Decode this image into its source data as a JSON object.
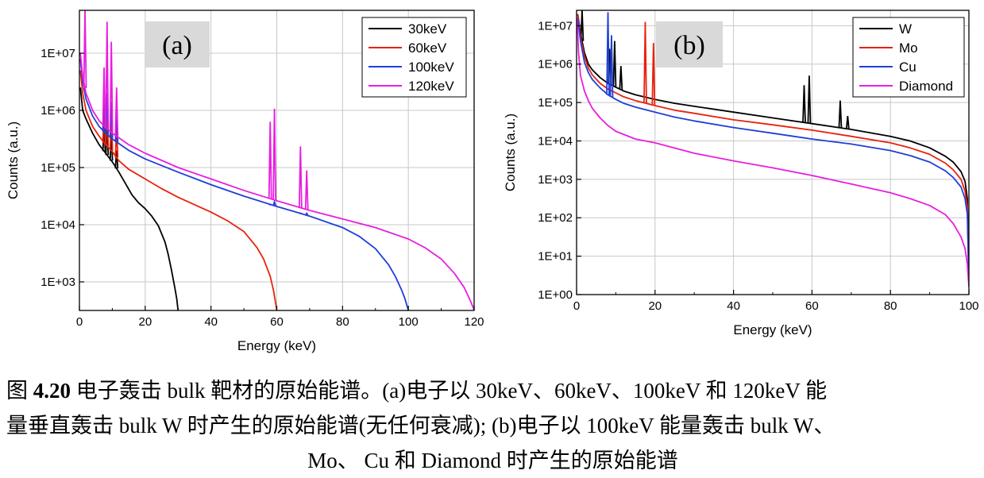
{
  "chart_data": [
    {
      "type": "line",
      "panel_label": "(a)",
      "xlabel": "Energy (keV)",
      "ylabel": "Counts (a.u.)",
      "yscale": "log",
      "xlim": [
        0,
        120
      ],
      "ylim_log10": [
        2.5,
        7.75
      ],
      "xticks": [
        0,
        20,
        40,
        60,
        80,
        100,
        120
      ],
      "xtick_labels": [
        "0",
        "20",
        "40",
        "60",
        "80",
        "100",
        "120"
      ],
      "yticks_log10": [
        3,
        4,
        5,
        6,
        7
      ],
      "ytick_labels": [
        "1E+03",
        "1E+04",
        "1E+05",
        "1E+06",
        "1E+07"
      ],
      "grid": true,
      "legend_position": "top-right",
      "series": [
        {
          "name": "30keV",
          "color": "#000000",
          "x": [
            0.3,
            1,
            2,
            4,
            6,
            8,
            10,
            12,
            14,
            16,
            18,
            20,
            22,
            24,
            26,
            27,
            28,
            29,
            29.6,
            29.9,
            30
          ],
          "log10y": [
            6.4,
            6.0,
            5.85,
            5.6,
            5.4,
            5.25,
            5.1,
            4.92,
            4.72,
            4.52,
            4.38,
            4.28,
            4.15,
            3.98,
            3.7,
            3.48,
            3.2,
            2.9,
            2.7,
            2.55,
            2.5
          ],
          "peaks": [
            {
              "x": 7.5,
              "log10y": 5.7
            },
            {
              "x": 8.4,
              "log10y": 5.75
            },
            {
              "x": 9.7,
              "log10y": 5.55
            },
            {
              "x": 11.3,
              "log10y": 5.3
            }
          ]
        },
        {
          "name": "60keV",
          "color": "#e8220c",
          "x": [
            0.3,
            1,
            2,
            4,
            6,
            8,
            10,
            12,
            15,
            20,
            25,
            30,
            35,
            40,
            45,
            50,
            54,
            56,
            58,
            59,
            59.6,
            60
          ],
          "log10y": [
            6.7,
            6.3,
            6.0,
            5.72,
            5.55,
            5.4,
            5.28,
            5.12,
            4.97,
            4.8,
            4.63,
            4.48,
            4.35,
            4.22,
            4.07,
            3.88,
            3.6,
            3.4,
            3.1,
            2.85,
            2.65,
            2.5
          ],
          "peaks": [
            {
              "x": 7.5,
              "log10y": 6.05
            },
            {
              "x": 8.4,
              "log10y": 6.1
            },
            {
              "x": 9.7,
              "log10y": 5.95
            },
            {
              "x": 11.3,
              "log10y": 5.7
            }
          ]
        },
        {
          "name": "100keV",
          "color": "#1f3fd8",
          "x": [
            0.3,
            1,
            2,
            4,
            6,
            8,
            10,
            15,
            20,
            30,
            40,
            50,
            60,
            70,
            80,
            85,
            90,
            94,
            96,
            98,
            99,
            99.6,
            100
          ],
          "log10y": [
            6.9,
            6.5,
            6.2,
            5.9,
            5.72,
            5.6,
            5.5,
            5.3,
            5.15,
            4.92,
            4.7,
            4.5,
            4.32,
            4.15,
            3.95,
            3.8,
            3.58,
            3.3,
            3.1,
            2.85,
            2.7,
            2.58,
            2.5
          ],
          "peaks": [
            {
              "x": 7.5,
              "log10y": 6.25
            },
            {
              "x": 8.4,
              "log10y": 6.3
            },
            {
              "x": 9.7,
              "log10y": 6.15
            },
            {
              "x": 11.3,
              "log10y": 5.95
            },
            {
              "x": 58.0,
              "log10y": 4.35
            },
            {
              "x": 59.3,
              "log10y": 4.4
            },
            {
              "x": 67.2,
              "log10y": 4.2
            },
            {
              "x": 69.1,
              "log10y": 4.2
            }
          ]
        },
        {
          "name": "120keV",
          "color": "#e81ee0",
          "x": [
            0.3,
            1,
            2,
            4,
            6,
            8,
            10,
            15,
            20,
            30,
            40,
            50,
            60,
            70,
            80,
            90,
            100,
            105,
            110,
            114,
            117,
            119,
            119.7,
            120
          ],
          "log10y": [
            7.0,
            6.6,
            6.3,
            6.0,
            5.82,
            5.7,
            5.6,
            5.4,
            5.25,
            5.0,
            4.8,
            4.6,
            4.42,
            4.25,
            4.1,
            3.95,
            3.75,
            3.6,
            3.4,
            3.15,
            2.9,
            2.65,
            2.55,
            2.5
          ],
          "peaks": [
            {
              "x": 1.7,
              "log10y": 7.75
            },
            {
              "x": 7.5,
              "log10y": 6.75
            },
            {
              "x": 8.4,
              "log10y": 7.55
            },
            {
              "x": 9.7,
              "log10y": 7.2
            },
            {
              "x": 11.3,
              "log10y": 6.4
            },
            {
              "x": 58.0,
              "log10y": 5.8
            },
            {
              "x": 59.3,
              "log10y": 6.03
            },
            {
              "x": 67.2,
              "log10y": 5.37
            },
            {
              "x": 69.1,
              "log10y": 4.95
            }
          ]
        }
      ]
    },
    {
      "type": "line",
      "panel_label": "(b)",
      "xlabel": "Energy (keV)",
      "ylabel": "Counts (a.u.)",
      "yscale": "log",
      "xlim": [
        0,
        100
      ],
      "ylim_log10": [
        0,
        7.4
      ],
      "xticks": [
        0,
        20,
        40,
        60,
        80,
        100
      ],
      "xtick_labels": [
        "0",
        "20",
        "40",
        "60",
        "80",
        "100"
      ],
      "yticks_log10": [
        0,
        1,
        2,
        3,
        4,
        5,
        6,
        7
      ],
      "ytick_labels": [
        "1E+00",
        "1E+01",
        "1E+02",
        "1E+03",
        "1E+04",
        "1E+05",
        "1E+06",
        "1E+07"
      ],
      "grid": true,
      "legend_position": "top-right",
      "series": [
        {
          "name": "W",
          "color": "#000000",
          "x": [
            0.3,
            1,
            2,
            3,
            4,
            6,
            8,
            10,
            12,
            15,
            20,
            25,
            30,
            40,
            50,
            60,
            70,
            80,
            85,
            90,
            94,
            96,
            98,
            99,
            99.6,
            100
          ],
          "log10y": [
            7.3,
            6.8,
            6.3,
            6.0,
            5.85,
            5.65,
            5.5,
            5.4,
            5.3,
            5.2,
            5.08,
            4.98,
            4.9,
            4.75,
            4.6,
            4.45,
            4.3,
            4.12,
            4.0,
            3.82,
            3.6,
            3.45,
            3.2,
            2.95,
            2.5,
            0.3
          ],
          "peaks": [
            {
              "x": 1.4,
              "log10y": 7.4
            },
            {
              "x": 8.4,
              "log10y": 6.4
            },
            {
              "x": 9.7,
              "log10y": 6.6
            },
            {
              "x": 11.3,
              "log10y": 5.95
            },
            {
              "x": 58.0,
              "log10y": 5.45
            },
            {
              "x": 59.3,
              "log10y": 5.7
            },
            {
              "x": 67.2,
              "log10y": 5.05
            },
            {
              "x": 69.1,
              "log10y": 4.65
            }
          ]
        },
        {
          "name": "Mo",
          "color": "#e8220c",
          "x": [
            0.3,
            1,
            2,
            3,
            4,
            6,
            8,
            10,
            12,
            15,
            20,
            25,
            30,
            40,
            50,
            60,
            70,
            80,
            85,
            90,
            94,
            96,
            98,
            99,
            99.6,
            100
          ],
          "log10y": [
            7.3,
            6.7,
            6.2,
            5.9,
            5.72,
            5.5,
            5.35,
            5.25,
            5.15,
            5.05,
            4.92,
            4.8,
            4.72,
            4.55,
            4.42,
            4.28,
            4.12,
            3.95,
            3.82,
            3.65,
            3.42,
            3.25,
            3.0,
            2.7,
            2.3,
            0.3
          ],
          "peaks": [
            {
              "x": 17.5,
              "log10y": 7.1
            },
            {
              "x": 19.6,
              "log10y": 6.55
            }
          ]
        },
        {
          "name": "Cu",
          "color": "#1f3fd8",
          "x": [
            0.3,
            1,
            2,
            3,
            4,
            6,
            8,
            10,
            12,
            15,
            20,
            25,
            30,
            40,
            50,
            60,
            70,
            80,
            85,
            90,
            94,
            96,
            98,
            99,
            99.6,
            100
          ],
          "log10y": [
            7.2,
            6.6,
            6.05,
            5.78,
            5.6,
            5.38,
            5.2,
            5.08,
            4.98,
            4.88,
            4.75,
            4.62,
            4.52,
            4.35,
            4.2,
            4.05,
            3.92,
            3.75,
            3.62,
            3.45,
            3.22,
            3.05,
            2.8,
            2.5,
            2.1,
            0.3
          ],
          "peaks": [
            {
              "x": 8.0,
              "log10y": 7.35
            },
            {
              "x": 8.9,
              "log10y": 6.75
            }
          ]
        },
        {
          "name": "Diamond",
          "color": "#e81ee0",
          "x": [
            0.15,
            0.5,
            1,
            2,
            3,
            4,
            6,
            8,
            10,
            15,
            20,
            30,
            40,
            50,
            60,
            70,
            80,
            85,
            90,
            94,
            96,
            98,
            99,
            99.6,
            100
          ],
          "log10y": [
            7.2,
            6.3,
            5.7,
            5.3,
            5.05,
            4.85,
            4.6,
            4.4,
            4.25,
            4.05,
            3.95,
            3.68,
            3.48,
            3.3,
            3.1,
            2.88,
            2.65,
            2.5,
            2.32,
            2.08,
            1.85,
            1.5,
            1.2,
            0.8,
            0.2
          ],
          "peaks": []
        }
      ]
    }
  ],
  "caption": {
    "label": "图",
    "number": "4.20",
    "line1_rest": "电子轰击 bulk 靶材的原始能谱。(a)电子以 30keV、60keV、100keV 和 120keV 能",
    "line2": "量垂直轰击 bulk W 时产生的原始能谱(无任何衰减); (b)电子以 100keV 能量轰击 bulk W、",
    "line3": "Mo、 Cu 和  Diamond 时产生的原始能谱"
  }
}
